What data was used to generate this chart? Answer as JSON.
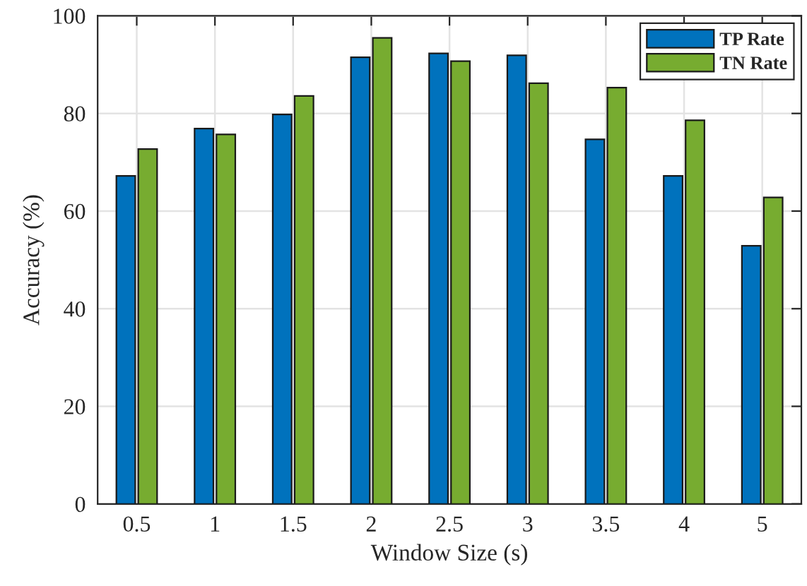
{
  "chart_data": {
    "type": "bar",
    "xlabel": "Window Size (s)",
    "ylabel": "Accuracy (%)",
    "categories": [
      "0.5",
      "1",
      "1.5",
      "2",
      "2.5",
      "3",
      "3.5",
      "4",
      "5"
    ],
    "series": [
      {
        "name": "TP Rate",
        "color": "#0072bd",
        "values": [
          67.2,
          76.9,
          79.8,
          91.5,
          92.3,
          91.9,
          74.7,
          67.2,
          52.9
        ]
      },
      {
        "name": "TN Rate",
        "color": "#77ac30",
        "values": [
          72.7,
          75.7,
          83.6,
          95.5,
          90.7,
          86.2,
          85.3,
          78.6,
          62.8
        ]
      }
    ],
    "ylim": [
      0,
      100
    ],
    "yticks": [
      0,
      20,
      40,
      60,
      80,
      100
    ],
    "grid": true,
    "legend": "top right"
  }
}
